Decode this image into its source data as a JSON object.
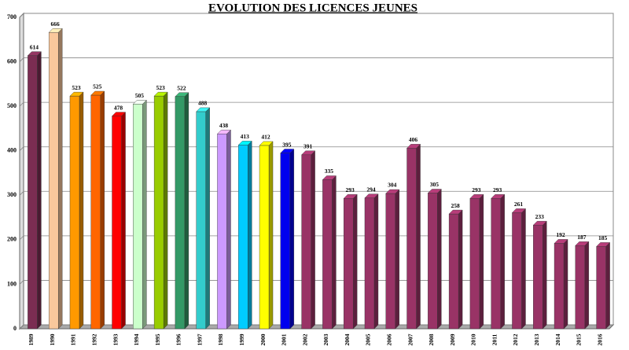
{
  "chart_data": {
    "type": "bar3d",
    "title": "EVOLUTION DES LICENCES JEUNES",
    "categories": [
      "1989",
      "1990",
      "1991",
      "1992",
      "1993",
      "1994",
      "1995",
      "1996",
      "1997",
      "1998",
      "1999",
      "2000",
      "2001",
      "2002",
      "2003",
      "2004",
      "2005",
      "2006",
      "2007",
      "2008",
      "2009",
      "2010",
      "2011",
      "2012",
      "2013",
      "2014",
      "2015",
      "2016"
    ],
    "values": [
      614,
      666,
      523,
      525,
      478,
      505,
      523,
      522,
      488,
      438,
      413,
      412,
      395,
      391,
      335,
      293,
      294,
      304,
      406,
      305,
      258,
      293,
      293,
      261,
      233,
      192,
      187,
      185
    ],
    "colors": [
      "#7b2d52",
      "#fac89c",
      "#ff9900",
      "#ff6600",
      "#ff0000",
      "#ccffcc",
      "#99cc00",
      "#339966",
      "#33cccc",
      "#cc99ff",
      "#00ccff",
      "#ffff00",
      "#0000ee",
      "#993366",
      "#993366",
      "#993366",
      "#993366",
      "#993366",
      "#993366",
      "#993366",
      "#993366",
      "#993366",
      "#993366",
      "#993366",
      "#993366",
      "#993366",
      "#993366",
      "#993366"
    ],
    "ylim": [
      0,
      700
    ],
    "yticks": [
      0,
      100,
      200,
      300,
      400,
      500,
      600,
      700
    ],
    "grid": true
  }
}
